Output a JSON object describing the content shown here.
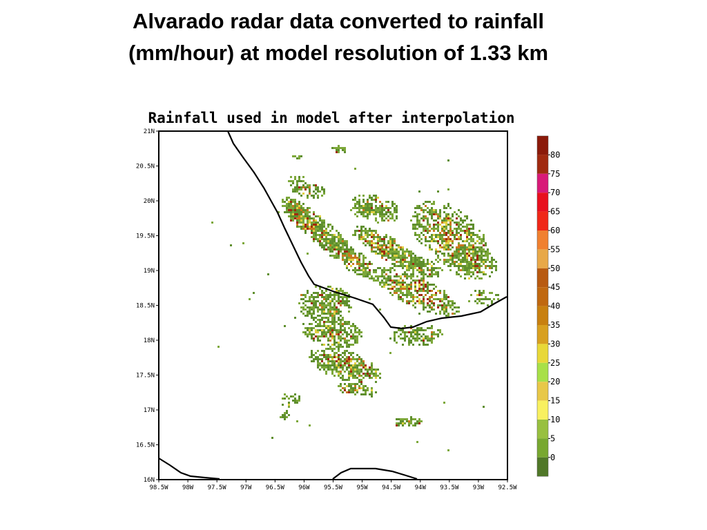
{
  "slide": {
    "title_line1": "Alvarado radar data converted to rainfall",
    "title_line2": "(mm/hour) at model resolution of 1.33 km"
  },
  "map": {
    "title": "Rainfall used in model after interpolation",
    "lat_range": [
      16,
      21
    ],
    "lon_range": [
      -98.5,
      -92.5
    ],
    "lat_ticks": [
      "21N",
      "20.5N",
      "20N",
      "19.5N",
      "19N",
      "18.5N",
      "18N",
      "17.5N",
      "17N",
      "16.5N",
      "16N"
    ],
    "lon_ticks": [
      "98.5W",
      "98W",
      "97.5W",
      "97W",
      "96.5W",
      "96W",
      "95.5W",
      "95W",
      "94.5W",
      "94W",
      "93.5W",
      "93W",
      "92.5W"
    ],
    "colors": {
      "coastline": "#000000",
      "rain_light": "#5f8f2e",
      "rain_mid": "#7da83a",
      "rain_yellow": "#e0d040",
      "rain_orange": "#c8781e",
      "rain_red": "#a02a10"
    }
  },
  "legend": {
    "unit": "mm/hour",
    "labels": [
      "80",
      "75",
      "70",
      "65",
      "60",
      "55",
      "50",
      "45",
      "40",
      "35",
      "30",
      "25",
      "20",
      "15",
      "10",
      "5",
      "0"
    ],
    "colors": [
      "#8b1a0a",
      "#a02a10",
      "#d81a78",
      "#e8101e",
      "#f02818",
      "#f08030",
      "#e8a848",
      "#b85a10",
      "#c06810",
      "#c88010",
      "#d8a020",
      "#e8d838",
      "#a8e048",
      "#e8c848",
      "#f8f060",
      "#98c040",
      "#78a830",
      "#507828"
    ]
  }
}
